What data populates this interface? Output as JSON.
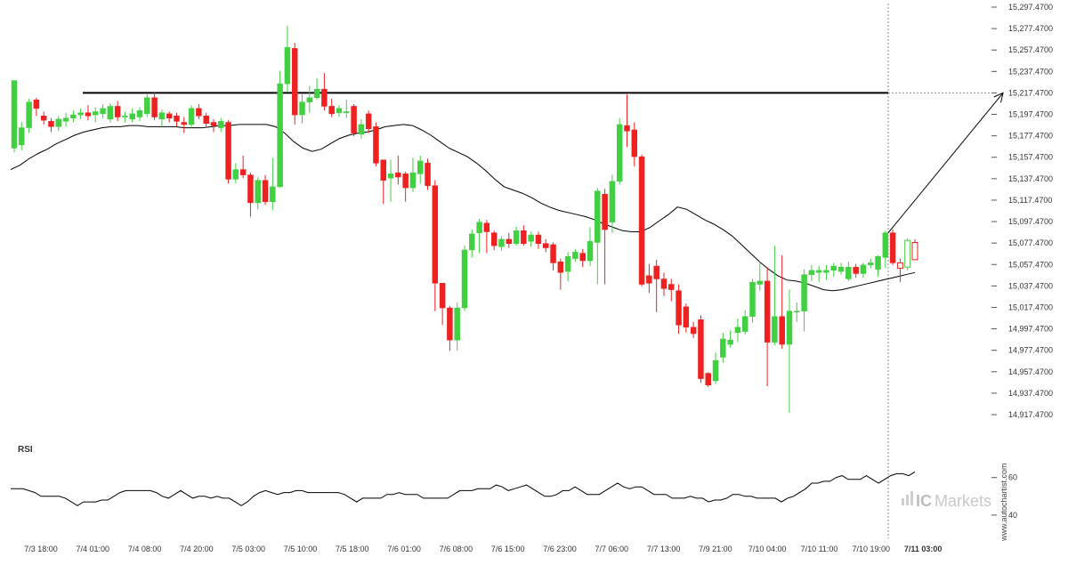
{
  "chart_data": {
    "type": "candlestick",
    "price_axis": {
      "ticks": [
        "15,297.4700",
        "15,277.4700",
        "15,257.4700",
        "15,237.4700",
        "15,217.4700",
        "15,197.4700",
        "15,177.4700",
        "15,157.4700",
        "15,137.4700",
        "15,117.4700",
        "15,097.4700",
        "15,077.4700",
        "15,057.4700",
        "15,037.4700",
        "15,017.4700",
        "14,997.4700",
        "14,977.4700",
        "14,957.4700",
        "14,937.4700",
        "14,917.4700"
      ],
      "max": 15297.47,
      "min": 14917.47
    },
    "time_axis": {
      "ticks": [
        "7/3 18:00",
        "7/4 01:00",
        "7/4 08:00",
        "7/4 20:00",
        "7/5 03:00",
        "7/5 10:00",
        "7/5 18:00",
        "7/6 01:00",
        "7/6 08:00",
        "7/6 15:00",
        "7/6 23:00",
        "7/7 06:00",
        "7/7 13:00",
        "7/9 21:00",
        "7/10 04:00",
        "7/10 11:00",
        "7/10 19:00",
        "7/11 03:00"
      ],
      "highlighted": "7/11 03:00"
    },
    "resistance_level": 15217.47,
    "projection_target": 15217.47,
    "moving_average": [
      15146,
      15150,
      15156,
      15161,
      15165,
      15170,
      15174,
      15178,
      15181,
      15183,
      15185,
      15186,
      15186,
      15187,
      15187,
      15186,
      15186,
      15186,
      15186,
      15185,
      15185,
      15185,
      15186,
      15187,
      15187,
      15188,
      15188,
      15188,
      15188,
      15186,
      15180,
      15172,
      15166,
      15163,
      15165,
      15170,
      15175,
      15178,
      15180,
      15181,
      15183,
      15186,
      15187,
      15188,
      15187,
      15183,
      15178,
      15172,
      15166,
      15162,
      15158,
      15152,
      15145,
      15137,
      15130,
      15127,
      15124,
      15120,
      15115,
      15111,
      15108,
      15106,
      15104,
      15102,
      15099,
      15095,
      15092,
      15089,
      15088,
      15088,
      15092,
      15098,
      15104,
      15111,
      15109,
      15104,
      15099,
      15095,
      15090,
      15084,
      15076,
      15068,
      15060,
      15053,
      15047,
      15043,
      15042,
      15040,
      15037,
      15034,
      15033,
      15034,
      15036,
      15038,
      15040,
      15042,
      15044,
      15046,
      15048,
      15050
    ],
    "candles": [
      {
        "o": 15166,
        "c": 15229,
        "h": 15229,
        "l": 15162
      },
      {
        "o": 15169,
        "c": 15185,
        "h": 15190,
        "l": 15164
      },
      {
        "o": 15185,
        "c": 15209,
        "h": 15212,
        "l": 15180
      },
      {
        "o": 15211,
        "c": 15203,
        "h": 15213,
        "l": 15196
      },
      {
        "o": 15196,
        "c": 15192,
        "h": 15200,
        "l": 15188
      },
      {
        "o": 15191,
        "c": 15186,
        "h": 15194,
        "l": 15181
      },
      {
        "o": 15186,
        "c": 15193,
        "h": 15196,
        "l": 15182
      },
      {
        "o": 15191,
        "c": 15194,
        "h": 15199,
        "l": 15186
      },
      {
        "o": 15194,
        "c": 15197,
        "h": 15201,
        "l": 15190
      },
      {
        "o": 15197,
        "c": 15199,
        "h": 15203,
        "l": 15193
      },
      {
        "o": 15199,
        "c": 15196,
        "h": 15206,
        "l": 15192
      },
      {
        "o": 15197,
        "c": 15200,
        "h": 15204,
        "l": 15190
      },
      {
        "o": 15198,
        "c": 15203,
        "h": 15207,
        "l": 15194
      },
      {
        "o": 15193,
        "c": 15205,
        "h": 15208,
        "l": 15190
      },
      {
        "o": 15205,
        "c": 15195,
        "h": 15210,
        "l": 15191
      },
      {
        "o": 15195,
        "c": 15196,
        "h": 15200,
        "l": 15190
      },
      {
        "o": 15193,
        "c": 15198,
        "h": 15203,
        "l": 15190
      },
      {
        "o": 15195,
        "c": 15201,
        "h": 15204,
        "l": 15191
      },
      {
        "o": 15198,
        "c": 15213,
        "h": 15216,
        "l": 15195
      },
      {
        "o": 15213,
        "c": 15195,
        "h": 15218,
        "l": 15192
      },
      {
        "o": 15193,
        "c": 15199,
        "h": 15202,
        "l": 15186
      },
      {
        "o": 15198,
        "c": 15194,
        "h": 15200,
        "l": 15190
      },
      {
        "o": 15196,
        "c": 15191,
        "h": 15199,
        "l": 15186
      },
      {
        "o": 15190,
        "c": 15188,
        "h": 15195,
        "l": 15180
      },
      {
        "o": 15188,
        "c": 15203,
        "h": 15206,
        "l": 15185
      },
      {
        "o": 15203,
        "c": 15196,
        "h": 15207,
        "l": 15193
      },
      {
        "o": 15196,
        "c": 15189,
        "h": 15199,
        "l": 15185
      },
      {
        "o": 15190,
        "c": 15187,
        "h": 15193,
        "l": 15181
      },
      {
        "o": 15185,
        "c": 15191,
        "h": 15194,
        "l": 15181
      },
      {
        "o": 15190,
        "c": 15137,
        "h": 15192,
        "l": 15133
      },
      {
        "o": 15137,
        "c": 15146,
        "h": 15152,
        "l": 15133
      },
      {
        "o": 15146,
        "c": 15141,
        "h": 15159,
        "l": 15138
      },
      {
        "o": 15141,
        "c": 15115,
        "h": 15143,
        "l": 15102
      },
      {
        "o": 15115,
        "c": 15136,
        "h": 15139,
        "l": 15109
      },
      {
        "o": 15136,
        "c": 15116,
        "h": 15141,
        "l": 15113
      },
      {
        "o": 15116,
        "c": 15130,
        "h": 15157,
        "l": 15108
      },
      {
        "o": 15130,
        "c": 15226,
        "h": 15238,
        "l": 15129
      },
      {
        "o": 15226,
        "c": 15260,
        "h": 15280,
        "l": 15218
      },
      {
        "o": 15259,
        "c": 15197,
        "h": 15264,
        "l": 15188
      },
      {
        "o": 15197,
        "c": 15209,
        "h": 15217,
        "l": 15189
      },
      {
        "o": 15209,
        "c": 15213,
        "h": 15224,
        "l": 15199
      },
      {
        "o": 15213,
        "c": 15221,
        "h": 15231,
        "l": 15211
      },
      {
        "o": 15221,
        "c": 15205,
        "h": 15236,
        "l": 15201
      },
      {
        "o": 15205,
        "c": 15198,
        "h": 15212,
        "l": 15195
      },
      {
        "o": 15199,
        "c": 15203,
        "h": 15206,
        "l": 15195
      },
      {
        "o": 15199,
        "c": 15200,
        "h": 15211,
        "l": 15194
      },
      {
        "o": 15205,
        "c": 15180,
        "h": 15207,
        "l": 15177
      },
      {
        "o": 15179,
        "c": 15188,
        "h": 15193,
        "l": 15175
      },
      {
        "o": 15198,
        "c": 15184,
        "h": 15201,
        "l": 15180
      },
      {
        "o": 15186,
        "c": 15152,
        "h": 15190,
        "l": 15149
      },
      {
        "o": 15155,
        "c": 15136,
        "h": 15155,
        "l": 15114
      },
      {
        "o": 15138,
        "c": 15142,
        "h": 15155,
        "l": 15116
      },
      {
        "o": 15143,
        "c": 15139,
        "h": 15159,
        "l": 15132
      },
      {
        "o": 15142,
        "c": 15129,
        "h": 15144,
        "l": 15116
      },
      {
        "o": 15129,
        "c": 15143,
        "h": 15157,
        "l": 15125
      },
      {
        "o": 15142,
        "c": 15154,
        "h": 15159,
        "l": 15133
      },
      {
        "o": 15152,
        "c": 15131,
        "h": 15156,
        "l": 15127
      },
      {
        "o": 15131,
        "c": 15040,
        "h": 15136,
        "l": 15014
      },
      {
        "o": 15040,
        "c": 15017,
        "h": 15040,
        "l": 15001
      },
      {
        "o": 15017,
        "c": 14987,
        "h": 15019,
        "l": 14977
      },
      {
        "o": 14987,
        "c": 15017,
        "h": 15022,
        "l": 14977
      },
      {
        "o": 15017,
        "c": 15071,
        "h": 15075,
        "l": 15014
      },
      {
        "o": 15071,
        "c": 15086,
        "h": 15090,
        "l": 15064
      },
      {
        "o": 15087,
        "c": 15097,
        "h": 15100,
        "l": 15068
      },
      {
        "o": 15096,
        "c": 15088,
        "h": 15099,
        "l": 15068
      },
      {
        "o": 15087,
        "c": 15075,
        "h": 15089,
        "l": 15071
      },
      {
        "o": 15074,
        "c": 15081,
        "h": 15084,
        "l": 15070
      },
      {
        "o": 15081,
        "c": 15077,
        "h": 15087,
        "l": 15073
      },
      {
        "o": 15077,
        "c": 15089,
        "h": 15093,
        "l": 15075
      },
      {
        "o": 15089,
        "c": 15077,
        "h": 15094,
        "l": 15075
      },
      {
        "o": 15079,
        "c": 15085,
        "h": 15088,
        "l": 15074
      },
      {
        "o": 15085,
        "c": 15077,
        "h": 15088,
        "l": 15072
      },
      {
        "o": 15077,
        "c": 15073,
        "h": 15081,
        "l": 15069
      },
      {
        "o": 15076,
        "c": 15059,
        "h": 15078,
        "l": 15052
      },
      {
        "o": 15060,
        "c": 15050,
        "h": 15063,
        "l": 15034
      },
      {
        "o": 15051,
        "c": 15065,
        "h": 15069,
        "l": 15042
      },
      {
        "o": 15063,
        "c": 15069,
        "h": 15072,
        "l": 15060
      },
      {
        "o": 15068,
        "c": 15061,
        "h": 15072,
        "l": 15055
      },
      {
        "o": 15061,
        "c": 15079,
        "h": 15092,
        "l": 15056
      },
      {
        "o": 15078,
        "c": 15126,
        "h": 15129,
        "l": 15039
      },
      {
        "o": 15123,
        "c": 15090,
        "h": 15128,
        "l": 15039
      },
      {
        "o": 15097,
        "c": 15135,
        "h": 15141,
        "l": 15087
      },
      {
        "o": 15135,
        "c": 15188,
        "h": 15194,
        "l": 15132
      },
      {
        "o": 15187,
        "c": 15182,
        "h": 15216,
        "l": 15167
      },
      {
        "o": 15183,
        "c": 15158,
        "h": 15190,
        "l": 15149
      },
      {
        "o": 15158,
        "c": 15039,
        "h": 15160,
        "l": 15037
      },
      {
        "o": 15047,
        "c": 15040,
        "h": 15058,
        "l": 15031
      },
      {
        "o": 15056,
        "c": 15044,
        "h": 15062,
        "l": 15013
      },
      {
        "o": 15044,
        "c": 15035,
        "h": 15050,
        "l": 15028
      },
      {
        "o": 15039,
        "c": 15034,
        "h": 15044,
        "l": 15023
      },
      {
        "o": 15033,
        "c": 15001,
        "h": 15039,
        "l": 14993
      },
      {
        "o": 15018,
        "c": 14999,
        "h": 15021,
        "l": 14994
      },
      {
        "o": 14999,
        "c": 14993,
        "h": 15004,
        "l": 14989
      },
      {
        "o": 15006,
        "c": 14951,
        "h": 15010,
        "l": 14947
      },
      {
        "o": 14956,
        "c": 14945,
        "h": 14957,
        "l": 14943
      },
      {
        "o": 14949,
        "c": 14968,
        "h": 14975,
        "l": 14946
      },
      {
        "o": 14971,
        "c": 14988,
        "h": 14994,
        "l": 14966
      },
      {
        "o": 14983,
        "c": 14987,
        "h": 14996,
        "l": 14980
      },
      {
        "o": 14994,
        "c": 14999,
        "h": 15007,
        "l": 14985
      },
      {
        "o": 14995,
        "c": 15009,
        "h": 15015,
        "l": 14992
      },
      {
        "o": 15009,
        "c": 15041,
        "h": 15044,
        "l": 15003
      },
      {
        "o": 15039,
        "c": 15042,
        "h": 15060,
        "l": 15033
      },
      {
        "o": 15042,
        "c": 14985,
        "h": 15055,
        "l": 14944
      },
      {
        "o": 14985,
        "c": 15009,
        "h": 15075,
        "l": 14982
      },
      {
        "o": 15009,
        "c": 14983,
        "h": 15066,
        "l": 14979
      },
      {
        "o": 14983,
        "c": 15014,
        "h": 15034,
        "l": 14919
      },
      {
        "o": 15014,
        "c": 15014,
        "h": 15022,
        "l": 15004
      },
      {
        "o": 15014,
        "c": 15048,
        "h": 15053,
        "l": 14995
      },
      {
        "o": 15048,
        "c": 15052,
        "h": 15057,
        "l": 15042
      },
      {
        "o": 15050,
        "c": 15052,
        "h": 15056,
        "l": 15041
      },
      {
        "o": 15050,
        "c": 15052,
        "h": 15057,
        "l": 15043
      },
      {
        "o": 15052,
        "c": 15056,
        "h": 15059,
        "l": 15046
      },
      {
        "o": 15051,
        "c": 15055,
        "h": 15059,
        "l": 15048
      },
      {
        "o": 15044,
        "c": 15055,
        "h": 15060,
        "l": 15042
      },
      {
        "o": 15055,
        "c": 15049,
        "h": 15058,
        "l": 15045
      },
      {
        "o": 15049,
        "c": 15057,
        "h": 15059,
        "l": 15045
      },
      {
        "o": 15057,
        "c": 15059,
        "h": 15063,
        "l": 15054
      },
      {
        "o": 15053,
        "c": 15065,
        "h": 15066,
        "l": 15046
      },
      {
        "o": 15064,
        "c": 15087,
        "h": 15089,
        "l": 15054
      },
      {
        "o": 15087,
        "c": 15059,
        "h": 15090,
        "l": 15057
      },
      {
        "o": 15059,
        "c": 15054,
        "h": 15063,
        "l": 15041
      },
      {
        "o": 15055,
        "c": 15080,
        "h": 15082,
        "l": 15052
      },
      {
        "o": 15078,
        "c": 15062,
        "h": 15081,
        "l": 15062
      }
    ],
    "rsi": {
      "label": "RSI",
      "ticks": [
        "60",
        "40"
      ],
      "min": 30,
      "max": 75,
      "values": [
        54,
        54,
        54,
        53,
        52,
        50,
        50,
        50,
        50,
        49,
        47,
        45,
        47,
        47,
        47,
        48,
        48,
        50,
        52,
        53,
        53,
        53,
        53,
        53,
        52,
        50,
        49,
        51,
        53,
        51,
        49,
        50,
        50,
        49,
        50,
        49,
        49,
        47,
        45,
        47,
        50,
        52,
        53,
        52,
        51,
        52,
        52,
        53,
        53,
        52,
        52,
        52,
        52,
        52,
        52,
        51,
        49,
        47,
        49,
        49,
        49,
        49,
        51,
        51,
        52,
        51,
        51,
        51,
        49,
        49,
        49,
        49,
        49,
        51,
        53,
        53,
        53,
        54,
        54,
        54,
        56,
        55,
        53,
        54,
        55,
        56,
        54,
        52,
        50,
        50,
        51,
        53,
        53,
        55,
        53,
        51,
        51,
        51,
        53,
        55,
        57,
        55,
        54,
        55,
        55,
        53,
        51,
        51,
        51,
        49,
        49,
        49,
        50,
        49,
        49,
        47,
        48,
        48,
        49,
        51,
        51,
        50,
        50,
        49,
        49,
        49,
        49,
        47,
        49,
        50,
        52,
        54,
        57,
        57,
        58,
        58,
        60,
        61,
        59,
        59,
        59,
        61,
        59,
        57,
        59,
        61,
        62,
        62,
        61,
        63
      ],
      "line_color": "#000000"
    },
    "colors": {
      "bull": "#41d041",
      "bear": "#ee2020",
      "bull_outline_last": "#41d041",
      "bear_outline_last": "#ee2020",
      "ma": "#000000",
      "resistance": "#000000",
      "grid_cursor": "#888888"
    },
    "grid": false,
    "legend": "none"
  },
  "branding": {
    "watermark": "www.autochartist.com",
    "brand_ic": "IC",
    "brand_markets": "Markets"
  }
}
